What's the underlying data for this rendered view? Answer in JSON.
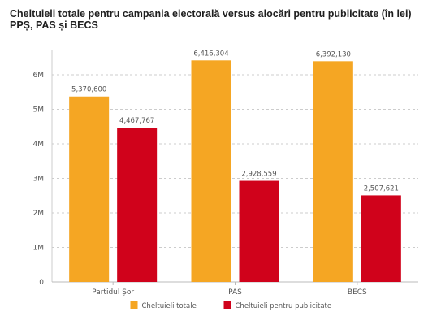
{
  "chart_data": {
    "type": "bar",
    "title": "Cheltuieli totale pentru campania electorală versus alocări pentru publicitate (în lei)",
    "subtitle": "PPȘ, PAS și BECS",
    "categories": [
      "Partidul Șor",
      "PAS",
      "BECS"
    ],
    "series": [
      {
        "name": "Cheltuieli totale",
        "color": "#f5a623",
        "values": [
          5370600,
          6416304,
          6392130
        ],
        "labels": [
          "5,370,600",
          "6,416,304",
          "6,392,130"
        ]
      },
      {
        "name": "Cheltuieli pentru publicitate",
        "color": "#d0021b",
        "values": [
          4467767,
          2928559,
          2507621
        ],
        "labels": [
          "4,467,767",
          "2,928,559",
          "2,507,621"
        ]
      }
    ],
    "y_ticks": [
      0,
      1000000,
      2000000,
      3000000,
      4000000,
      5000000,
      6000000
    ],
    "y_tick_labels": [
      "0",
      "1M",
      "2M",
      "3M",
      "4M",
      "5M",
      "6M"
    ],
    "ylim": [
      0,
      6000000
    ],
    "grid": "horizontal dashed",
    "legend_position": "bottom-center"
  }
}
